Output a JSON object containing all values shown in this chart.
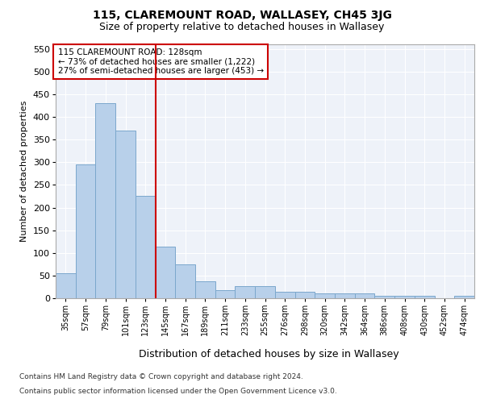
{
  "title": "115, CLAREMOUNT ROAD, WALLASEY, CH45 3JG",
  "subtitle": "Size of property relative to detached houses in Wallasey",
  "xlabel": "Distribution of detached houses by size in Wallasey",
  "ylabel": "Number of detached properties",
  "categories": [
    "35sqm",
    "57sqm",
    "79sqm",
    "101sqm",
    "123sqm",
    "145sqm",
    "167sqm",
    "189sqm",
    "211sqm",
    "233sqm",
    "255sqm",
    "276sqm",
    "298sqm",
    "320sqm",
    "342sqm",
    "364sqm",
    "386sqm",
    "408sqm",
    "430sqm",
    "452sqm",
    "474sqm"
  ],
  "values": [
    55,
    295,
    430,
    370,
    225,
    113,
    75,
    38,
    17,
    27,
    27,
    15,
    15,
    10,
    10,
    10,
    5,
    5,
    5,
    0,
    5
  ],
  "bar_color": "#b8d0ea",
  "bar_edge_color": "#7ba7cc",
  "vline_color": "#cc0000",
  "vline_pos": 4.5,
  "annotation_text": "115 CLAREMOUNT ROAD: 128sqm\n← 73% of detached houses are smaller (1,222)\n27% of semi-detached houses are larger (453) →",
  "annotation_box_color": "#ffffff",
  "annotation_box_edge": "#cc0000",
  "ylim": [
    0,
    560
  ],
  "yticks": [
    0,
    50,
    100,
    150,
    200,
    250,
    300,
    350,
    400,
    450,
    500,
    550
  ],
  "footer1": "Contains HM Land Registry data © Crown copyright and database right 2024.",
  "footer2": "Contains public sector information licensed under the Open Government Licence v3.0.",
  "bg_color": "#eef2f9",
  "fig_bg_color": "#ffffff",
  "title_fontsize": 10,
  "subtitle_fontsize": 9,
  "ylabel_fontsize": 8,
  "xlabel_fontsize": 9,
  "tick_fontsize": 7,
  "annotation_fontsize": 7.5,
  "footer_fontsize": 6.5
}
